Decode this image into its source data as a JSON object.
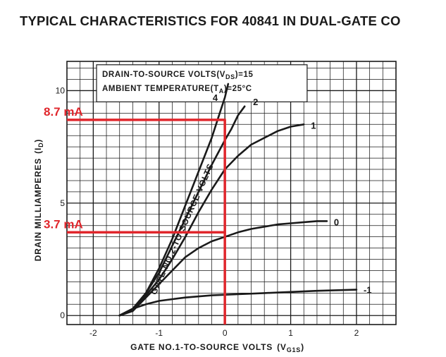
{
  "page_title": "TYPICAL CHARACTERISTICS FOR 40841 IN DUAL-GATE CO",
  "colors": {
    "ink": "#1a1a1a",
    "annotation": "#e0262c",
    "background": "#ffffff"
  },
  "chart_data": {
    "type": "line",
    "title": "TYPICAL CHARACTERISTICS FOR 40841 IN DUAL-GATE CO",
    "xlabel": "GATE NO.1-TO-SOURCE VOLTS",
    "xlabel_sym": "(V",
    "xlabel_sub": "G1S",
    "xlabel_end": ")",
    "ylabel": "DRAIN MILLIAMPERES",
    "ylabel_sym": "(I",
    "ylabel_sub": "D",
    "ylabel_end": ")",
    "xlim": [
      -2.4,
      2.6
    ],
    "ylim": [
      -0.4,
      11.3
    ],
    "x_ticks": [
      {
        "value": -2,
        "label": "-2"
      },
      {
        "value": -1,
        "label": "-1"
      },
      {
        "value": 0,
        "label": "0"
      },
      {
        "value": 1,
        "label": "1"
      },
      {
        "value": 2,
        "label": "2"
      }
    ],
    "y_ticks": [
      {
        "value": 0,
        "label": "0"
      },
      {
        "value": 5,
        "label": "5"
      },
      {
        "value": 10,
        "label": "10"
      }
    ],
    "grid": true,
    "grid_minor_step_x": 0.2,
    "grid_minor_step_y": 0.5,
    "conditions": {
      "line1": "DRAIN-TO-SOURCE VOLTS",
      "line1_sym": "(V",
      "line1_sub": "DS",
      "line1_end": ")=15",
      "line2": "AMBIENT TEMPERATURE",
      "line2_sym": "(T",
      "line2_sub": "A",
      "line2_end": ")=25°C"
    },
    "family_label": "GATE NO.2-TO-SOURCE VOLTS",
    "series": [
      {
        "name": "4",
        "color": "#1a1a1a",
        "points": [
          [
            -1.6,
            0
          ],
          [
            -1.4,
            0.3
          ],
          [
            -1.2,
            1.0
          ],
          [
            -1.0,
            2.1
          ],
          [
            -0.8,
            3.4
          ],
          [
            -0.6,
            4.9
          ],
          [
            -0.4,
            6.4
          ],
          [
            -0.2,
            7.9
          ],
          [
            -0.1,
            8.8
          ],
          [
            0.0,
            9.7
          ],
          [
            0.05,
            10.3
          ]
        ]
      },
      {
        "name": "2",
        "color": "#1a1a1a",
        "points": [
          [
            -1.6,
            0
          ],
          [
            -1.4,
            0.3
          ],
          [
            -1.2,
            1.0
          ],
          [
            -1.0,
            1.9
          ],
          [
            -0.8,
            3.1
          ],
          [
            -0.6,
            4.3
          ],
          [
            -0.4,
            5.5
          ],
          [
            -0.2,
            6.7
          ],
          [
            0.0,
            7.8
          ],
          [
            0.1,
            8.3
          ],
          [
            0.2,
            8.9
          ],
          [
            0.3,
            9.3
          ]
        ]
      },
      {
        "name": "1",
        "color": "#1a1a1a",
        "points": [
          [
            -1.6,
            0
          ],
          [
            -1.4,
            0.3
          ],
          [
            -1.2,
            0.9
          ],
          [
            -1.0,
            1.6
          ],
          [
            -0.8,
            2.5
          ],
          [
            -0.6,
            3.5
          ],
          [
            -0.4,
            4.6
          ],
          [
            -0.2,
            5.6
          ],
          [
            0.0,
            6.5
          ],
          [
            0.2,
            7.1
          ],
          [
            0.4,
            7.6
          ],
          [
            0.6,
            7.9
          ],
          [
            0.8,
            8.2
          ],
          [
            1.0,
            8.4
          ],
          [
            1.2,
            8.5
          ]
        ]
      },
      {
        "name": "0",
        "color": "#1a1a1a",
        "points": [
          [
            -1.6,
            0
          ],
          [
            -1.4,
            0.2
          ],
          [
            -1.2,
            0.8
          ],
          [
            -1.0,
            1.4
          ],
          [
            -0.8,
            2.0
          ],
          [
            -0.6,
            2.6
          ],
          [
            -0.4,
            3.0
          ],
          [
            -0.2,
            3.3
          ],
          [
            0.0,
            3.5
          ],
          [
            0.2,
            3.7
          ],
          [
            0.4,
            3.85
          ],
          [
            0.6,
            3.95
          ],
          [
            0.8,
            4.05
          ],
          [
            1.0,
            4.1
          ],
          [
            1.2,
            4.15
          ],
          [
            1.4,
            4.2
          ],
          [
            1.55,
            4.2
          ]
        ]
      },
      {
        "name": "-1",
        "color": "#1a1a1a",
        "points": [
          [
            -1.6,
            0
          ],
          [
            -1.4,
            0.3
          ],
          [
            -1.2,
            0.5
          ],
          [
            -1.0,
            0.65
          ],
          [
            -0.6,
            0.8
          ],
          [
            -0.2,
            0.9
          ],
          [
            0.2,
            0.95
          ],
          [
            0.6,
            1.0
          ],
          [
            1.0,
            1.05
          ],
          [
            1.4,
            1.1
          ],
          [
            2.0,
            1.15
          ]
        ]
      }
    ],
    "annotations": [
      {
        "label": "8.7 mA",
        "y": 8.7,
        "x_to": 0.0
      },
      {
        "label": "3.7 mA",
        "y": 3.7,
        "x_to": 0.0
      }
    ],
    "annotation_vertical_x": 0.0
  }
}
